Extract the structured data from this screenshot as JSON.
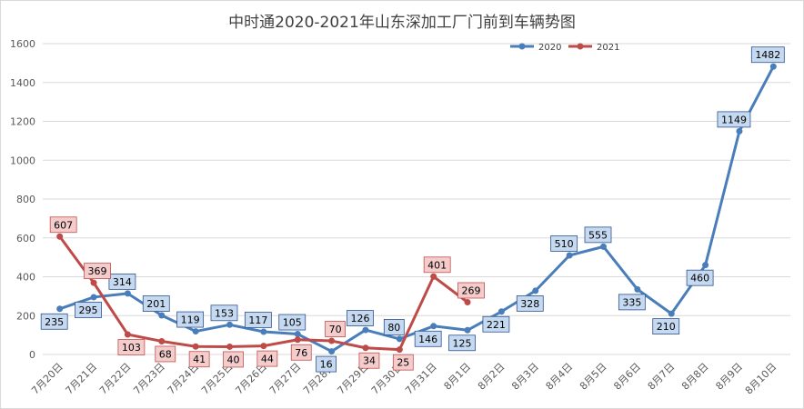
{
  "chart_data": {
    "type": "line",
    "title": "中时通2020-2021年山东深加工厂门前到车辆势图",
    "categories": [
      "7月20日",
      "7月21日",
      "7月22日",
      "7月23日",
      "7月24日",
      "7月25日",
      "7月26日",
      "7月27日",
      "7月28日",
      "7月29日",
      "7月30日",
      "7月31日",
      "8月1日",
      "8月2日",
      "8月3日",
      "8月4日",
      "8月5日",
      "8月6日",
      "8月7日",
      "8月8日",
      "8月9日",
      "8月10日"
    ],
    "ylim": [
      0,
      1600
    ],
    "yticks": [
      0,
      200,
      400,
      600,
      800,
      1000,
      1200,
      1400,
      1600
    ],
    "grid": true,
    "legend_position": "top-right",
    "series": [
      {
        "name": "2020",
        "color": "#4a7ebb",
        "label_fill": "#c5d9f1",
        "values": [
          235,
          295,
          314,
          201,
          119,
          153,
          117,
          105,
          16,
          126,
          80,
          146,
          125,
          221,
          328,
          510,
          555,
          335,
          210,
          460,
          1149,
          1482
        ]
      },
      {
        "name": "2021",
        "color": "#be4b48",
        "label_fill": "#f4cccc",
        "values": [
          607,
          369,
          103,
          68,
          41,
          40,
          44,
          76,
          70,
          34,
          25,
          401,
          269,
          null,
          null,
          null,
          null,
          null,
          null,
          null,
          null,
          null
        ]
      }
    ]
  }
}
